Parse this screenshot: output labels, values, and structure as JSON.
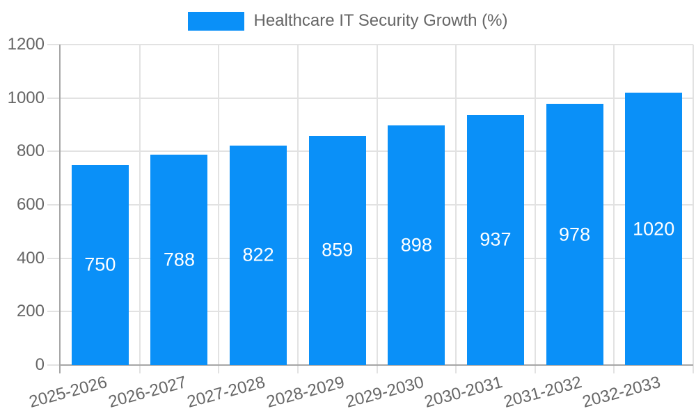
{
  "legend": {
    "position": "top-center",
    "items": [
      {
        "label": "Healthcare IT Security Growth (%)",
        "swatch": "bar-color"
      }
    ]
  },
  "chart_data": {
    "type": "bar",
    "title": "Healthcare IT Security Growth (%)",
    "categories": [
      "2025-2026",
      "2026-2027",
      "2027-2028",
      "2028-2029",
      "2029-2030",
      "2030-2031",
      "2031-2032",
      "2032-2033"
    ],
    "values": [
      750,
      788,
      822,
      859,
      898,
      937,
      978,
      1020
    ],
    "value_labels_shown": true,
    "xlabel": "",
    "ylabel": "",
    "ylim": [
      0,
      1200
    ],
    "yticks": [
      0,
      200,
      400,
      600,
      800,
      1000,
      1200
    ],
    "grid": true,
    "x_tick_rotation_deg": -15,
    "colors": {
      "bar": "#0a90f8",
      "bar_value_label": "#ffffff",
      "grid": "#e2e2e2",
      "axis": "#a6a6a6",
      "text": "#666666",
      "background": "#ffffff"
    }
  }
}
